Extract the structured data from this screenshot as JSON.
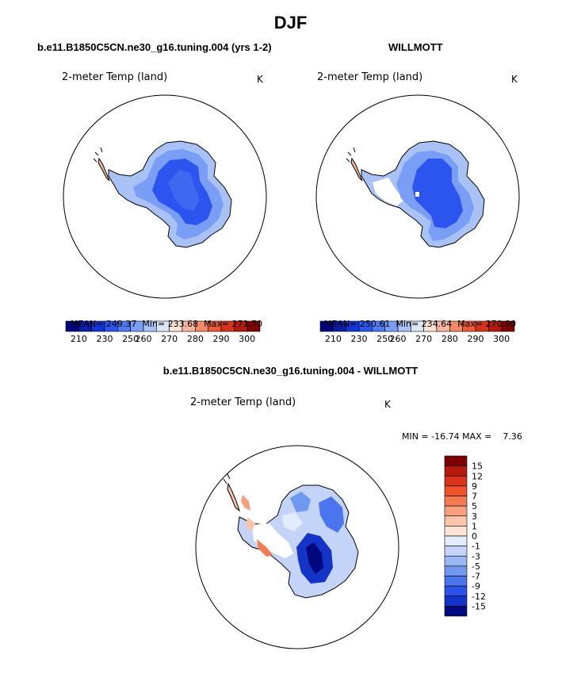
{
  "figure": {
    "season_title": "DJF",
    "panels": [
      {
        "case_title": "b.e11.B1850C5CN.ne30_g16.tuning.004 (yrs 1-2)",
        "variable_label": "2-meter Temp (land)",
        "units": "K",
        "stats": {
          "mean_label": "MEAN=",
          "mean": "249.37",
          "min_label": "Min=",
          "min": "233.68",
          "max_label": "Max=",
          "max": "271.70"
        }
      },
      {
        "case_title": "WILLMOTT",
        "variable_label": "2-meter Temp (land)",
        "units": "K",
        "stats": {
          "mean_label": "MEAN=",
          "mean": "250.61",
          "min_label": "Min=",
          "min": "234.64",
          "max_label": "Max=",
          "max": "270.90"
        }
      }
    ],
    "abs_colorbar": {
      "colors": [
        "#00007f",
        "#0a1fa8",
        "#1236d6",
        "#2c54ee",
        "#5079f4",
        "#7a9df6",
        "#a9c2f6",
        "#dbe6f8",
        "#fde3d6",
        "#f8b79e",
        "#f48a67",
        "#ee5a35",
        "#d6341a",
        "#b41a0e",
        "#7f0000"
      ],
      "tick_labels": [
        "210",
        "230",
        "250",
        "260",
        "270",
        "280",
        "290",
        "300"
      ]
    },
    "diff_panel": {
      "title": "b.e11.B1850C5CN.ne30_g16.tuning.004 - WILLMOTT",
      "variable_label": "2-meter Temp (land)",
      "units": "K",
      "minmax_text": "MIN = -16.74 MAX =    7.36",
      "colorbar_colors": [
        "#7f0000",
        "#b51a0e",
        "#d9331a",
        "#f0522a",
        "#f47a52",
        "#f8a07e",
        "#fbc5ab",
        "#fde4d6",
        "#e3ecfb",
        "#c3d4f8",
        "#9cb8f5",
        "#7198f1",
        "#4a75ee",
        "#2a52e8",
        "#1434c8",
        "#00087f"
      ],
      "colorbar_labels": [
        "15",
        "12",
        "9",
        "7",
        "5",
        "3",
        "1",
        "0",
        "-1",
        "-3",
        "-5",
        "-7",
        "-9",
        "-12",
        "-15"
      ]
    }
  }
}
